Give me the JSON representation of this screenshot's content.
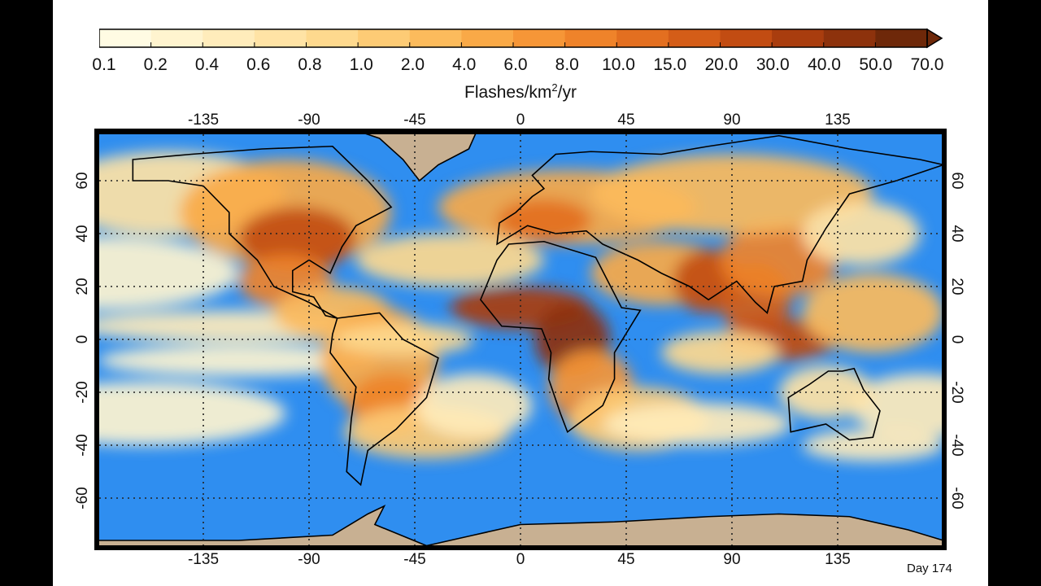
{
  "colorbar": {
    "labels": [
      "0.1",
      "0.2",
      "0.4",
      "0.6",
      "0.8",
      "1.0",
      "2.0",
      "4.0",
      "6.0",
      "8.0",
      "10.0",
      "15.0",
      "20.0",
      "30.0",
      "40.0",
      "50.0",
      "70.0"
    ],
    "colors": [
      "#fffbe3",
      "#fff4cf",
      "#ffecbb",
      "#ffe3a5",
      "#fed98e",
      "#fdcb75",
      "#fcbb5c",
      "#f9a947",
      "#f69637",
      "#ef832a",
      "#e36f20",
      "#d45d18",
      "#c24c12",
      "#a93d0e",
      "#8d320c",
      "#6e2809"
    ],
    "title": "Flashes/km",
    "title_sup": "2",
    "title_suffix": "/yr",
    "extend": "max"
  },
  "map": {
    "ocean_color": "#2f8ef0",
    "land_no_data_color": "#c8b092",
    "lon_ticks": [
      "-135",
      "-90",
      "-45",
      "0",
      "45",
      "90",
      "135"
    ],
    "lat_ticks": [
      "60",
      "40",
      "20",
      "0",
      "-20",
      "-40",
      "-60"
    ],
    "grid": "dotted"
  },
  "day_label": "Day 174"
}
